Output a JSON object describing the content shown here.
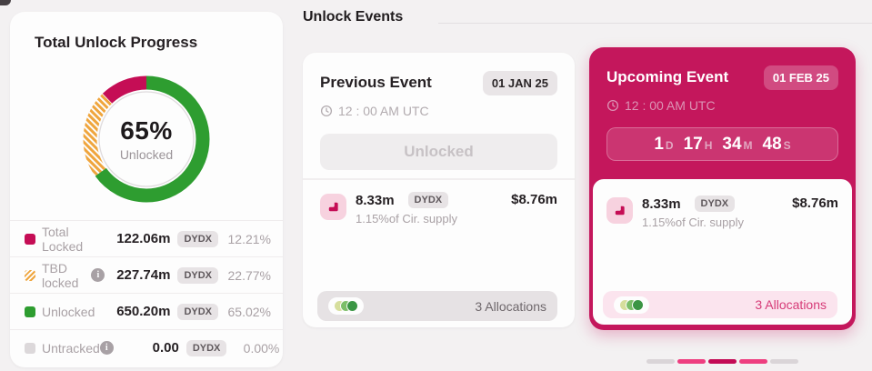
{
  "left_panel": {
    "title": "Total Unlock Progress",
    "chart_data": {
      "type": "pie",
      "center_value": "65%",
      "center_label": "Unlocked",
      "segments": [
        {
          "name": "Unlocked",
          "percent": 65.02,
          "color": "#2E9D30",
          "pattern": "solid"
        },
        {
          "name": "TBD locked",
          "percent": 22.77,
          "color": "#EFA53D",
          "pattern": "striped"
        },
        {
          "name": "Total Locked",
          "percent": 12.21,
          "color": "#C50D55",
          "pattern": "solid"
        },
        {
          "name": "Untracked",
          "percent": 0.0,
          "color": "#DCD8DA",
          "pattern": "solid"
        }
      ]
    },
    "legend": [
      {
        "label": "Total Locked",
        "color": "#C50D55",
        "pattern": "solid",
        "info": false,
        "value": "122.06m",
        "symbol": "DYDX",
        "percent": "12.21%"
      },
      {
        "label": "TBD locked",
        "color": "#EFA53D",
        "pattern": "striped",
        "info": true,
        "value": "227.74m",
        "symbol": "DYDX",
        "percent": "22.77%"
      },
      {
        "label": "Unlocked",
        "color": "#2E9D30",
        "pattern": "solid",
        "info": false,
        "value": "650.20m",
        "symbol": "DYDX",
        "percent": "65.02%"
      },
      {
        "label": "Untracked",
        "color": "#DCD8DA",
        "pattern": "solid",
        "info": true,
        "value": "0.00",
        "symbol": "DYDX",
        "percent": "0.00%"
      }
    ]
  },
  "events": {
    "section_title": "Unlock Events",
    "previous": {
      "title": "Previous Event",
      "date": "01 JAN 25",
      "time": "12 : 00 AM UTC",
      "status": "Unlocked",
      "token": {
        "amount": "8.33m",
        "symbol": "DYDX",
        "usd": "$8.76m",
        "supply_share": "1.15%of Cir. supply"
      },
      "allocations": "3 Allocations"
    },
    "upcoming": {
      "title": "Upcoming Event",
      "date": "01 FEB 25",
      "time": "12 : 00 AM UTC",
      "countdown": [
        {
          "value": "1",
          "unit": "D"
        },
        {
          "value": "17",
          "unit": "H"
        },
        {
          "value": "34",
          "unit": "M"
        },
        {
          "value": "48",
          "unit": "S"
        }
      ],
      "token": {
        "amount": "8.33m",
        "symbol": "DYDX",
        "usd": "$8.76m",
        "supply_share": "1.15%of Cir. supply"
      },
      "allocations": "3 Allocations"
    },
    "allocation_dot_colors": [
      "#D6DE9C",
      "#7CBE69",
      "#3B9544"
    ],
    "pagination_bars": [
      "#DAD5D8",
      "#EE3F80",
      "#C30B55",
      "#EE3F80",
      "#DAD5D8"
    ]
  }
}
